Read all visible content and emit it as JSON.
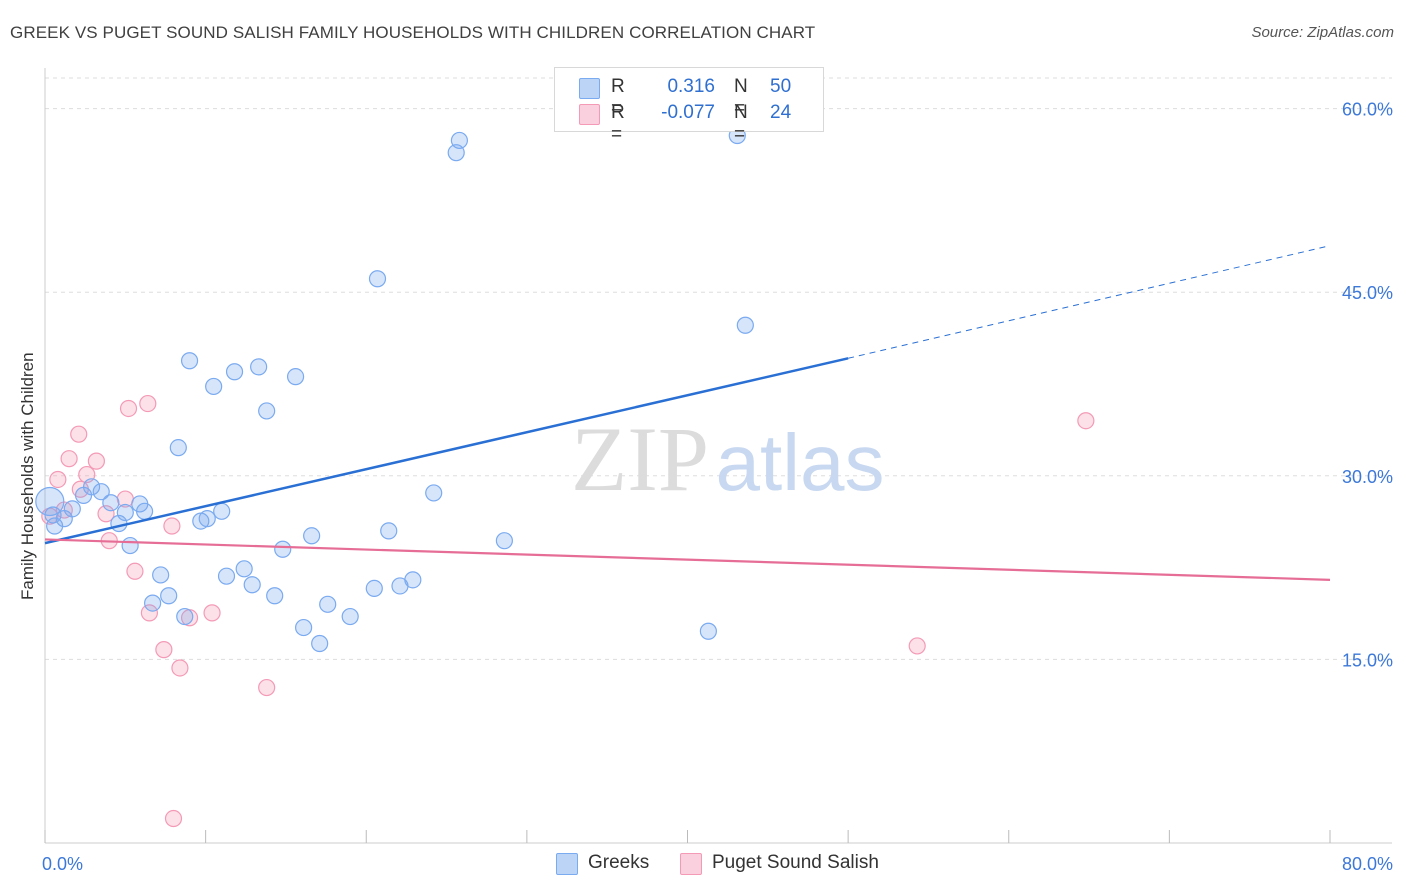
{
  "title": "GREEK VS PUGET SOUND SALISH FAMILY HOUSEHOLDS WITH CHILDREN CORRELATION CHART",
  "source": "Source: ZipAtlas.com",
  "watermark": {
    "zip": "ZIP",
    "atlas": "atlas"
  },
  "legend": {
    "series1": {
      "r_label": "R =",
      "r_value": "0.316",
      "n_label": "N =",
      "n_value": "50"
    },
    "series2": {
      "r_label": "R =",
      "r_value": "-0.077",
      "n_label": "N =",
      "n_value": "24"
    }
  },
  "chart_data": {
    "type": "scatter",
    "title": "GREEK VS PUGET SOUND SALISH FAMILY HOUSEHOLDS WITH CHILDREN CORRELATION CHART",
    "xlabel": "",
    "ylabel": "Family Households with Children",
    "xlim": [
      0,
      80
    ],
    "ylim": [
      0,
      62.5
    ],
    "x_tick_labels": [
      "0.0%",
      "80.0%"
    ],
    "y_ticks": [
      15,
      30,
      45,
      60
    ],
    "y_tick_labels": [
      "15.0%",
      "30.0%",
      "45.0%",
      "60.0%"
    ],
    "colors": {
      "greeks": "#7aaaf0",
      "greeks_line": "#2a70d4",
      "salish": "#f49ab6",
      "salish_line": "#e66d95",
      "axis_text": "#3c78d8"
    },
    "series": [
      {
        "name": "Greeks",
        "points": [
          [
            0.5,
            26.8
          ],
          [
            0.6,
            25.9
          ],
          [
            1.2,
            26.5
          ],
          [
            1.7,
            27.3
          ],
          [
            2.4,
            28.4
          ],
          [
            2.9,
            29.1
          ],
          [
            3.5,
            28.7
          ],
          [
            4.1,
            27.8
          ],
          [
            4.6,
            26.1
          ],
          [
            5.0,
            27.0
          ],
          [
            5.3,
            24.3
          ],
          [
            5.9,
            27.7
          ],
          [
            6.2,
            27.1
          ],
          [
            6.7,
            19.6
          ],
          [
            7.2,
            21.9
          ],
          [
            7.7,
            20.2
          ],
          [
            8.3,
            32.3
          ],
          [
            8.7,
            18.5
          ],
          [
            9.0,
            39.4
          ],
          [
            9.7,
            26.3
          ],
          [
            10.1,
            26.5
          ],
          [
            10.5,
            37.3
          ],
          [
            11.0,
            27.1
          ],
          [
            11.3,
            21.8
          ],
          [
            11.8,
            38.5
          ],
          [
            12.4,
            22.4
          ],
          [
            12.9,
            21.1
          ],
          [
            13.3,
            38.9
          ],
          [
            13.8,
            35.3
          ],
          [
            14.3,
            20.2
          ],
          [
            14.8,
            24.0
          ],
          [
            15.6,
            38.1
          ],
          [
            16.1,
            17.6
          ],
          [
            16.6,
            25.1
          ],
          [
            17.1,
            16.3
          ],
          [
            17.6,
            19.5
          ],
          [
            19.0,
            18.5
          ],
          [
            20.5,
            20.8
          ],
          [
            20.7,
            46.1
          ],
          [
            21.4,
            25.5
          ],
          [
            22.1,
            21.0
          ],
          [
            22.9,
            21.5
          ],
          [
            24.2,
            28.6
          ],
          [
            25.6,
            56.4
          ],
          [
            25.8,
            57.4
          ],
          [
            28.6,
            24.7
          ],
          [
            41.3,
            17.3
          ],
          [
            43.1,
            57.8
          ],
          [
            43.6,
            42.3
          ],
          [
            0.3,
            27.9
          ]
        ]
      },
      {
        "name": "Puget Sound Salish",
        "points": [
          [
            0.3,
            26.7
          ],
          [
            0.8,
            29.7
          ],
          [
            1.2,
            27.2
          ],
          [
            1.5,
            31.4
          ],
          [
            2.2,
            28.9
          ],
          [
            2.6,
            30.1
          ],
          [
            3.2,
            31.2
          ],
          [
            2.1,
            33.4
          ],
          [
            3.8,
            26.9
          ],
          [
            4.0,
            24.7
          ],
          [
            5.0,
            28.1
          ],
          [
            5.2,
            35.5
          ],
          [
            5.6,
            22.2
          ],
          [
            6.4,
            35.9
          ],
          [
            6.5,
            18.8
          ],
          [
            7.4,
            15.8
          ],
          [
            7.9,
            25.9
          ],
          [
            8.4,
            14.3
          ],
          [
            9.0,
            18.4
          ],
          [
            10.4,
            18.8
          ],
          [
            13.8,
            12.7
          ],
          [
            8.0,
            2.0
          ],
          [
            54.3,
            16.1
          ],
          [
            64.8,
            34.5
          ]
        ]
      }
    ],
    "trendlines": [
      {
        "series": "Greeks",
        "x0": 0,
        "y0": 24.5,
        "x1": 50,
        "y1": 39.6,
        "extend_to_x": 80,
        "extend_to_y": 48.8
      },
      {
        "series": "Puget Sound Salish",
        "x0": 0,
        "y0": 24.8,
        "x1": 80,
        "y1": 21.5
      }
    ]
  },
  "bottom_legend": {
    "greeks": "Greeks",
    "salish": "Puget Sound Salish"
  }
}
